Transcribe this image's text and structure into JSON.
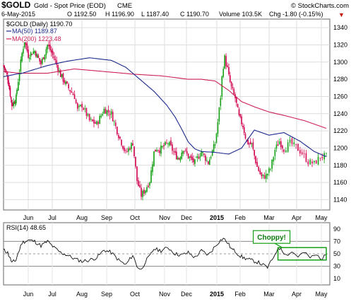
{
  "header": {
    "symbol": "$GOLD",
    "name": "Gold - Spot Price (EOD)",
    "exchange": "CME",
    "watermark": "© StockCharts.com",
    "date": "6-May-2015",
    "open": "O 1192.50",
    "high": "H 1196.90",
    "low": "L 1187.40",
    "close": "C 1190.70",
    "volume": "Volume 103.5K",
    "change": "Chg -1.80 (-0.15%)",
    "change_arrow": "▼"
  },
  "legend": {
    "ma50": "MA(50) 1189.87",
    "ma200": "MA(200) 1223.48",
    "price": "$GOLD (Daily) 1190.70"
  },
  "rsi_panel": {
    "label": "RSI(14) 48.65",
    "annotation": "Choppy!"
  },
  "chart_data": [
    {
      "type": "candlestick",
      "title": "$GOLD (Daily) 1190.70",
      "ylim": [
        1128,
        1350
      ],
      "yticks": [
        1140,
        1160,
        1180,
        1200,
        1220,
        1240,
        1260,
        1280,
        1300,
        1320,
        1340
      ],
      "xlabels": [
        "Jun",
        "Jul",
        "Aug",
        "Sep",
        "Oct",
        "Nov",
        "Dec",
        "2015",
        "Feb",
        "Mar",
        "Apr",
        "May"
      ],
      "grid": true,
      "colors": {
        "up": "#12a012",
        "down": "#d2004e",
        "ma50": "#1c2a8c",
        "ma200": "#cc2255"
      },
      "series": [
        {
          "name": "MA(50)",
          "x": [
            0,
            20,
            40,
            55,
            70,
            85,
            95,
            105,
            115,
            124,
            130,
            135,
            140,
            145,
            150,
            160,
            170,
            180,
            190,
            200,
            210,
            218,
            225,
            231
          ],
          "values": [
            1283,
            1287,
            1296,
            1301,
            1305,
            1302,
            1294,
            1280,
            1266,
            1250,
            1236,
            1222,
            1207,
            1199,
            1196,
            1195,
            1193,
            1200,
            1221,
            1215,
            1218,
            1208,
            1196,
            1190
          ]
        },
        {
          "name": "MA(200)",
          "x": [
            0,
            20,
            40,
            60,
            80,
            100,
            120,
            140,
            150,
            160,
            170,
            180,
            190,
            200,
            210,
            220,
            231
          ],
          "values": [
            1289,
            1287,
            1287,
            1292,
            1289,
            1286,
            1284,
            1280,
            1280,
            1278,
            1267,
            1254,
            1248,
            1242,
            1238,
            1232,
            1223
          ]
        },
        {
          "name": "$GOLD",
          "x": [
            0,
            5,
            10,
            15,
            20,
            22,
            25,
            30,
            35,
            40,
            45,
            50,
            55,
            60,
            62,
            65,
            70,
            75,
            80,
            85,
            90,
            95,
            100,
            103,
            106,
            109,
            112,
            115,
            117,
            119,
            122,
            125,
            128,
            130,
            133,
            136,
            140,
            145,
            150,
            155,
            160,
            162,
            164,
            165,
            166,
            167,
            168,
            169,
            170,
            172,
            175,
            178,
            181,
            184,
            188,
            192,
            195,
            198,
            201,
            204,
            207,
            210,
            213,
            216,
            219,
            222,
            225,
            228,
            231
          ],
          "values": [
            1296,
            1282,
            1250,
            1258,
            1310,
            1325,
            1308,
            1313,
            1298,
            1320,
            1305,
            1285,
            1272,
            1260,
            1244,
            1250,
            1232,
            1228,
            1245,
            1240,
            1215,
            1194,
            1206,
            1162,
            1145,
            1152,
            1162,
            1195,
            1200,
            1198,
            1202,
            1206,
            1198,
            1192,
            1188,
            1200,
            1190,
            1183,
            1196,
            1183,
            1205,
            1230,
            1260,
            1282,
            1296,
            1305,
            1298,
            1292,
            1283,
            1270,
            1258,
            1236,
            1226,
            1207,
            1204,
            1178,
            1166,
            1168,
            1176,
            1198,
            1208,
            1199,
            1206,
            1201,
            1194,
            1184,
            1182,
            1190,
            1190.7
          ]
        }
      ]
    },
    {
      "type": "line",
      "title": "RSI(14) 48.65",
      "ylim": [
        0,
        100
      ],
      "yticks": [
        10,
        30,
        50,
        70,
        90
      ],
      "reference_lines": [
        30,
        50,
        70
      ],
      "xlabels": [
        "Jun",
        "Jul",
        "Aug",
        "Sep",
        "Oct",
        "Nov",
        "Dec",
        "2015",
        "Feb",
        "Mar",
        "Apr",
        "May"
      ],
      "series": [
        {
          "name": "RSI(14)",
          "x": [
            0,
            5,
            10,
            15,
            20,
            25,
            30,
            35,
            40,
            45,
            50,
            55,
            60,
            65,
            70,
            75,
            80,
            85,
            90,
            95,
            100,
            103,
            106,
            109,
            112,
            115,
            120,
            125,
            130,
            135,
            140,
            145,
            150,
            155,
            160,
            163,
            166,
            169,
            172,
            175,
            178,
            181,
            184,
            187,
            190,
            193,
            196,
            199,
            202,
            205,
            208,
            211,
            214,
            217,
            220,
            223,
            226,
            229,
            231
          ],
          "values": [
            56,
            52,
            36,
            40,
            68,
            72,
            70,
            63,
            70,
            60,
            52,
            48,
            42,
            38,
            40,
            44,
            56,
            52,
            40,
            32,
            48,
            30,
            24,
            38,
            46,
            58,
            55,
            60,
            50,
            48,
            52,
            44,
            55,
            48,
            62,
            70,
            75,
            68,
            58,
            54,
            48,
            44,
            42,
            40,
            38,
            36,
            32,
            28,
            40,
            55,
            60,
            48,
            53,
            46,
            52,
            44,
            48,
            42,
            48.65
          ]
        }
      ],
      "annotations": [
        {
          "text": "Choppy!",
          "x_range": [
            206,
            231
          ],
          "y_range": [
            40,
            60
          ]
        }
      ]
    }
  ]
}
